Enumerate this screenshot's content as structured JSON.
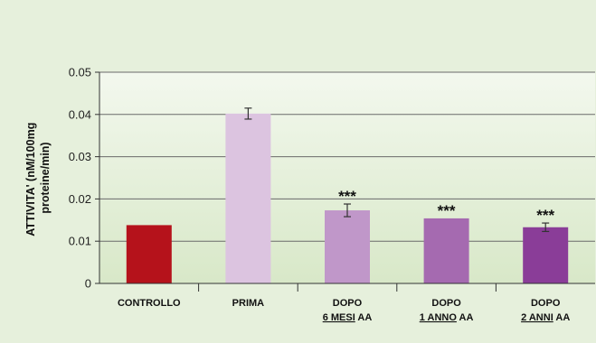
{
  "chart_data": {
    "type": "bar",
    "ylabel_lines": [
      "ATTIVITA' (nM/100mg",
      "proteine/min)"
    ],
    "ylim": [
      0,
      0.05
    ],
    "yticks": [
      "0",
      "0.01",
      "0.02",
      "0.03",
      "0.04",
      "0.05"
    ],
    "categories": [
      {
        "line1": "CONTROLLO",
        "line2_underlined": "",
        "line2_suffix": ""
      },
      {
        "line1": "PRIMA",
        "line2_underlined": "",
        "line2_suffix": ""
      },
      {
        "line1": "DOPO",
        "line2_underlined": "6 MESI",
        "line2_suffix": " AA"
      },
      {
        "line1": "DOPO",
        "line2_underlined": "1 ANNO",
        "line2_suffix": " AA"
      },
      {
        "line1": "DOPO",
        "line2_underlined": "2 ANNI",
        "line2_suffix": " AA"
      }
    ],
    "values": [
      0.0138,
      0.0402,
      0.0173,
      0.0154,
      0.0133
    ],
    "errors": [
      null,
      0.0013,
      0.0015,
      null,
      0.001
    ],
    "annotations": [
      "",
      "",
      "***",
      "***",
      "***"
    ],
    "colors": [
      "#b5121b",
      "#dcc4e0",
      "#c097c9",
      "#a56ab0",
      "#8a3d98"
    ],
    "grid": true
  }
}
